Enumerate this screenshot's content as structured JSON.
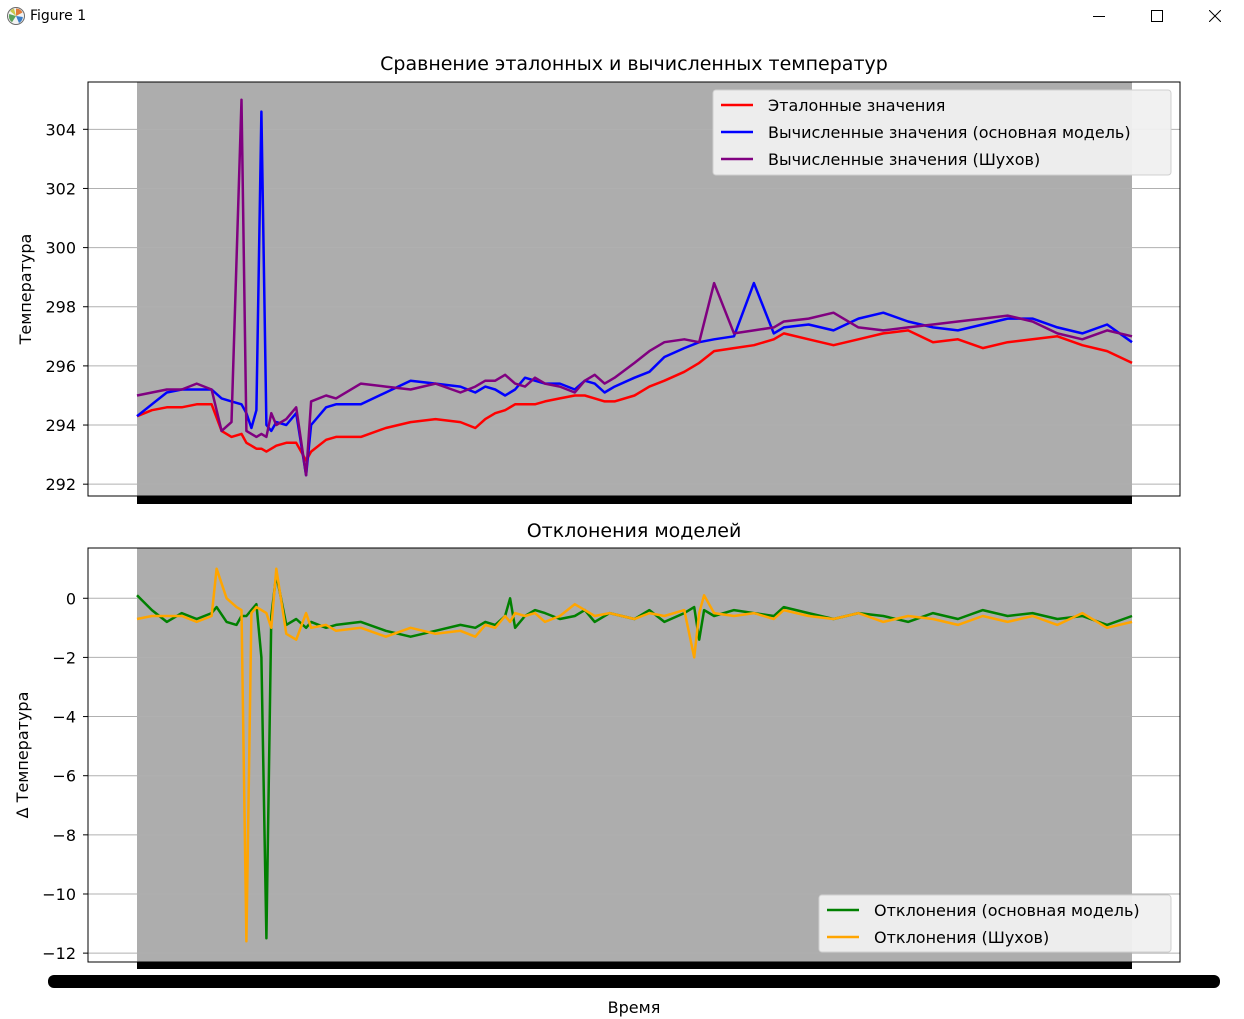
{
  "window": {
    "title": "Figure 1",
    "icons": [
      "matplotlib-icon",
      "minimize-icon",
      "maximize-icon",
      "close-icon"
    ]
  },
  "colors": {
    "axes_bg": "#adadad",
    "reference": "#ff0000",
    "main_model": "#0000ff",
    "shukhov": "#800080",
    "dev_main": "#008000",
    "dev_shukhov": "#ffa500",
    "grid": "#b0b0b0"
  },
  "chart_data": [
    {
      "type": "line",
      "title": "Сравнение эталонных и вычисленных температур",
      "xlabel": "",
      "ylabel": "Температура",
      "ylim": [
        291.6,
        305.6
      ],
      "yticks": [
        292,
        294,
        296,
        298,
        300,
        302,
        304
      ],
      "ytick_labels": [
        "292",
        "294",
        "296",
        "298",
        "300",
        "302",
        "304"
      ],
      "grid": "horizontal",
      "legend_position": "top-right",
      "x": [
        0,
        3,
        6,
        9,
        12,
        15,
        17,
        19,
        21,
        22,
        23,
        24,
        25,
        26,
        27,
        28,
        30,
        32,
        34,
        35,
        38,
        40,
        45,
        50,
        55,
        60,
        65,
        68,
        70,
        72,
        74,
        76,
        78,
        80,
        82,
        85,
        88,
        90,
        92,
        94,
        95,
        96,
        100,
        103,
        106,
        110,
        113,
        116,
        120,
        124,
        128,
        130,
        135,
        140,
        145,
        150,
        155,
        160,
        165,
        170,
        175,
        180,
        185,
        190,
        195,
        200
      ],
      "series": [
        {
          "name": "Эталонные значения",
          "values": [
            294.3,
            294.5,
            294.6,
            294.6,
            294.7,
            294.7,
            293.8,
            293.6,
            293.7,
            293.4,
            293.3,
            293.2,
            293.2,
            293.1,
            293.2,
            293.3,
            293.4,
            293.4,
            292.8,
            293.1,
            293.5,
            293.6,
            293.6,
            293.9,
            294.1,
            294.2,
            294.1,
            293.9,
            294.2,
            294.4,
            294.5,
            294.7,
            294.7,
            294.7,
            294.8,
            294.9,
            295.0,
            295.0,
            294.9,
            294.8,
            294.8,
            294.8,
            295.0,
            295.3,
            295.5,
            295.8,
            296.1,
            296.5,
            296.6,
            296.7,
            296.9,
            297.1,
            296.9,
            296.7,
            296.9,
            297.1,
            297.2,
            296.8,
            296.9,
            296.6,
            296.8,
            296.9,
            297.0,
            296.7,
            296.5,
            296.1
          ]
        },
        {
          "name": "Вычисленные значения (основная модель)",
          "values": [
            294.3,
            294.7,
            295.1,
            295.2,
            295.2,
            295.2,
            294.9,
            294.8,
            294.7,
            294.4,
            293.9,
            294.5,
            304.6,
            294.0,
            293.8,
            294.1,
            294.0,
            294.4,
            292.3,
            294.0,
            294.6,
            294.7,
            294.7,
            295.1,
            295.5,
            295.4,
            295.3,
            295.1,
            295.3,
            295.2,
            295.0,
            295.2,
            295.6,
            295.5,
            295.4,
            295.4,
            295.2,
            295.5,
            295.4,
            295.1,
            295.2,
            295.3,
            295.6,
            295.8,
            296.3,
            296.6,
            296.8,
            296.9,
            297.0,
            298.8,
            297.1,
            297.3,
            297.4,
            297.2,
            297.6,
            297.8,
            297.5,
            297.3,
            297.2,
            297.4,
            297.6,
            297.6,
            297.3,
            297.1,
            297.4,
            296.8
          ]
        },
        {
          "name": "Вычисленные значения (Шухов)",
          "values": [
            295.0,
            295.1,
            295.2,
            295.2,
            295.4,
            295.2,
            293.8,
            294.1,
            305.0,
            293.8,
            293.7,
            293.6,
            293.7,
            293.6,
            294.4,
            294.0,
            294.2,
            294.6,
            292.3,
            294.8,
            295.0,
            294.9,
            295.4,
            295.3,
            295.2,
            295.4,
            295.1,
            295.3,
            295.5,
            295.5,
            295.7,
            295.4,
            295.3,
            295.6,
            295.4,
            295.3,
            295.1,
            295.5,
            295.7,
            295.4,
            295.5,
            295.6,
            296.1,
            296.5,
            296.8,
            296.9,
            296.8,
            298.8,
            297.1,
            297.2,
            297.3,
            297.5,
            297.6,
            297.8,
            297.3,
            297.2,
            297.3,
            297.4,
            297.5,
            297.6,
            297.7,
            297.5,
            297.1,
            296.9,
            297.2,
            297.0
          ]
        }
      ]
    },
    {
      "type": "line",
      "title": "Отклонения моделей",
      "xlabel": "Время",
      "ylabel": "Δ Температура",
      "ylim": [
        -12.3,
        1.7
      ],
      "yticks": [
        -12,
        -10,
        -8,
        -6,
        -4,
        -2,
        0
      ],
      "ytick_labels": [
        "−12",
        "−10",
        "−8",
        "−6",
        "−4",
        "−2",
        "0"
      ],
      "grid": "horizontal",
      "legend_position": "bottom-right",
      "x": [
        0,
        3,
        6,
        9,
        12,
        15,
        16,
        18,
        20,
        21,
        22,
        23,
        24,
        25,
        26,
        27,
        28,
        30,
        32,
        34,
        35,
        38,
        40,
        45,
        50,
        55,
        60,
        65,
        68,
        70,
        72,
        74,
        75,
        76,
        78,
        80,
        82,
        85,
        88,
        90,
        92,
        95,
        100,
        103,
        106,
        110,
        112,
        113,
        114,
        116,
        120,
        124,
        128,
        130,
        135,
        140,
        145,
        150,
        155,
        160,
        165,
        170,
        175,
        180,
        185,
        190,
        195,
        200
      ],
      "series": [
        {
          "name": "Отклонения (основная модель)",
          "values": [
            0.1,
            -0.4,
            -0.8,
            -0.5,
            -0.7,
            -0.5,
            -0.3,
            -0.8,
            -0.9,
            -0.6,
            -0.6,
            -0.4,
            -0.2,
            -2.0,
            -11.5,
            -0.6,
            0.8,
            -0.9,
            -0.7,
            -1.0,
            -0.8,
            -1.0,
            -0.9,
            -0.8,
            -1.1,
            -1.3,
            -1.1,
            -0.9,
            -1.0,
            -0.8,
            -0.9,
            -0.6,
            0.0,
            -1.0,
            -0.6,
            -0.4,
            -0.5,
            -0.7,
            -0.6,
            -0.4,
            -0.8,
            -0.5,
            -0.7,
            -0.4,
            -0.8,
            -0.5,
            -0.3,
            -1.4,
            -0.4,
            -0.6,
            -0.4,
            -0.5,
            -0.6,
            -0.3,
            -0.5,
            -0.7,
            -0.5,
            -0.6,
            -0.8,
            -0.5,
            -0.7,
            -0.4,
            -0.6,
            -0.5,
            -0.7,
            -0.6,
            -0.9,
            -0.6
          ]
        },
        {
          "name": "Отклонения (Шухов)",
          "values": [
            -0.7,
            -0.6,
            -0.6,
            -0.6,
            -0.8,
            -0.6,
            1.0,
            0.0,
            -0.3,
            -0.4,
            -11.6,
            -0.5,
            -0.3,
            -0.4,
            -0.5,
            -1.0,
            1.0,
            -1.2,
            -1.4,
            -0.5,
            -1.0,
            -0.9,
            -1.1,
            -1.0,
            -1.3,
            -1.0,
            -1.2,
            -1.1,
            -1.3,
            -0.9,
            -1.0,
            -0.6,
            -0.8,
            -0.5,
            -0.6,
            -0.5,
            -0.8,
            -0.6,
            -0.2,
            -0.4,
            -0.6,
            -0.5,
            -0.7,
            -0.5,
            -0.6,
            -0.4,
            -2.0,
            -0.5,
            0.1,
            -0.5,
            -0.6,
            -0.5,
            -0.7,
            -0.4,
            -0.6,
            -0.7,
            -0.5,
            -0.8,
            -0.6,
            -0.7,
            -0.9,
            -0.6,
            -0.8,
            -0.6,
            -0.9,
            -0.5,
            -1.0,
            -0.8
          ]
        }
      ]
    }
  ]
}
